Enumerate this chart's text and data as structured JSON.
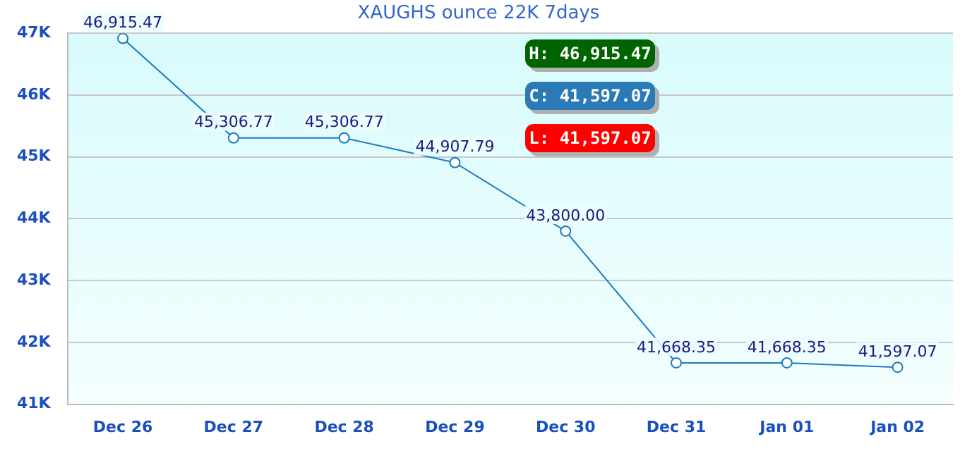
{
  "chart_data": {
    "type": "line",
    "title": "XAUGHS ounce 22K 7days",
    "categories": [
      "Dec 26",
      "Dec 27",
      "Dec 28",
      "Dec 29",
      "Dec 30",
      "Dec 31",
      "Jan 01",
      "Jan 02"
    ],
    "series": [
      {
        "color": "#1a7bbf",
        "values": [
          46915.47,
          45306.77,
          45306.77,
          44907.79,
          43800.0,
          41668.35,
          41668.35,
          41597.07
        ],
        "value_labels": [
          "46,915.47",
          "45,306.77",
          "45,306.77",
          "44,907.79",
          "43,800.00",
          "41,668.35",
          "41,668.35",
          "41,597.07"
        ]
      }
    ],
    "ylim": [
      41000,
      47000
    ],
    "yticks": [
      {
        "value": 41000,
        "label": "41K"
      },
      {
        "value": 42000,
        "label": "42K"
      },
      {
        "value": 43000,
        "label": "43K"
      },
      {
        "value": 44000,
        "label": "44K"
      },
      {
        "value": 45000,
        "label": "45K"
      },
      {
        "value": 46000,
        "label": "46K"
      },
      {
        "value": 47000,
        "label": "47K"
      }
    ],
    "grid": "y",
    "legend": false,
    "marker": "circle",
    "line_style": "solid",
    "annotations": [
      "H: 46,915.47",
      "C: 41,597.07",
      "L: 41,597.07"
    ]
  }
}
